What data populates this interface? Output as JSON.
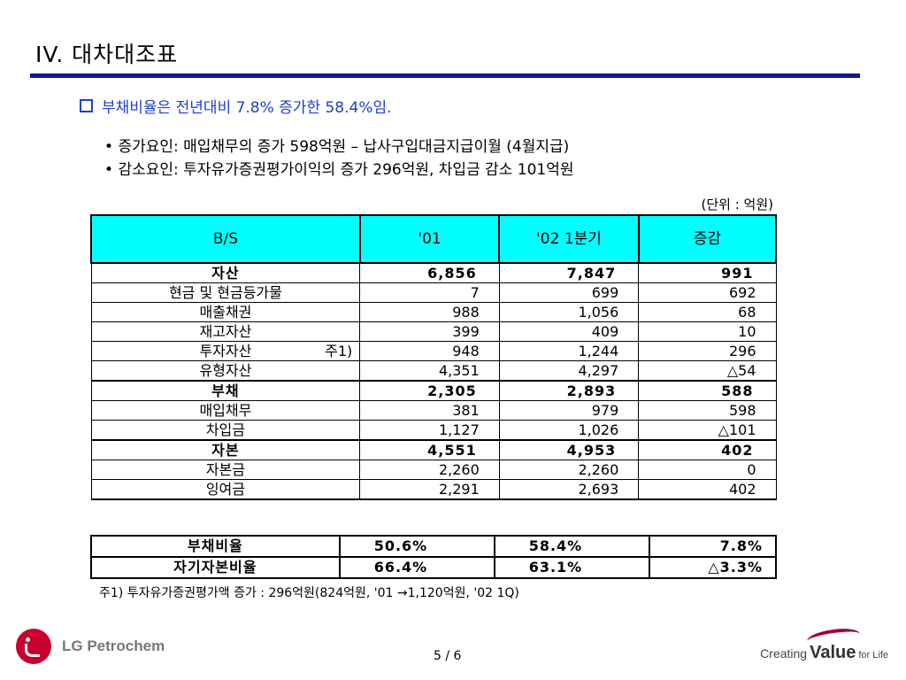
{
  "title": "IV. 대차대조표",
  "headline": "부채비율은 전년대비 7.8% 증가한 58.4%임.",
  "bullets": [
    "증가요인: 매입채무의 증가 598억원 – 납사구입대금지급이월 (4월지급)",
    "감소요인: 투자유가증권평가이익의 증가 296억원, 차입금 감소 101억원"
  ],
  "unit": "(단위 : 억원)",
  "table": {
    "headers": [
      "B/S",
      "'01",
      "'02 1분기",
      "증감"
    ],
    "rows": [
      {
        "name": "자산",
        "v01": "6,856",
        "v02": "7,847",
        "diff": "991",
        "bold": true
      },
      {
        "name": "현금 및 현금등가물",
        "v01": "7",
        "v02": "699",
        "diff": "692"
      },
      {
        "name": "매출채권",
        "v01": "988",
        "v02": "1,056",
        "diff": "68"
      },
      {
        "name": "재고자산",
        "v01": "399",
        "v02": "409",
        "diff": "10"
      },
      {
        "name": "투자자산",
        "note": "주1)",
        "v01": "948",
        "v02": "1,244",
        "diff": "296"
      },
      {
        "name": "유형자산",
        "v01": "4,351",
        "v02": "4,297",
        "diff": "△54"
      },
      {
        "name": "부채",
        "v01": "2,305",
        "v02": "2,893",
        "diff": "588",
        "bold": true
      },
      {
        "name": "매입채무",
        "v01": "381",
        "v02": "979",
        "diff": "598"
      },
      {
        "name": "차입금",
        "v01": "1,127",
        "v02": "1,026",
        "diff": "△101"
      },
      {
        "name": "자본",
        "v01": "4,551",
        "v02": "4,953",
        "diff": "402",
        "bold": true
      },
      {
        "name": "자본금",
        "v01": "2,260",
        "v02": "2,260",
        "diff": "0"
      },
      {
        "name": "잉여금",
        "v01": "2,291",
        "v02": "2,693",
        "diff": "402"
      }
    ]
  },
  "ratios": [
    {
      "name": "부채비율",
      "v01": "50.6%",
      "v02": "58.4%",
      "diff": "7.8%"
    },
    {
      "name": "자기자본비율",
      "v01": "66.4%",
      "v02": "63.1%",
      "diff": "△3.3%"
    }
  ],
  "footnote": "주1) 투자유가증권평가액 증가 : 296억원(824억원, '01 →1,120억원, '02 1Q)",
  "footer": {
    "company": "LG Petrochem",
    "page": "5 / 6",
    "tagline_pre": "Creating",
    "tagline_main": "Value",
    "tagline_post": "for Life"
  },
  "colors": {
    "header_fill": "#00ffff",
    "title_rule": "#0a1a8c",
    "headline": "#1f3fcf",
    "lg_red": "#c8002d"
  }
}
